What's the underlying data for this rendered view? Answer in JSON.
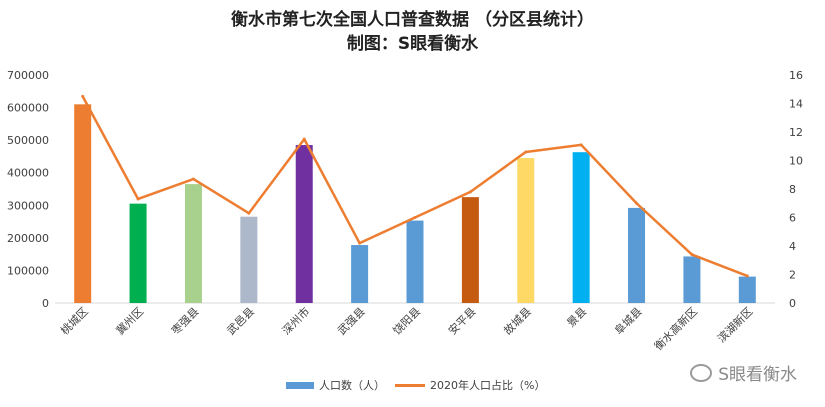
{
  "header": {
    "title": "衡水市第七次全国人口普查数据 （分区县统计）",
    "subtitle": "制图：S眼看衡水"
  },
  "watermark": "S眼看衡水",
  "chart_data": {
    "type": "bar",
    "categories": [
      "桃城区",
      "冀州区",
      "枣强县",
      "武邑县",
      "深州市",
      "武强县",
      "饶阳县",
      "安平县",
      "故城县",
      "景县",
      "阜城县",
      "衡水高新区",
      "滨湖新区"
    ],
    "y_ticks": [
      "0",
      "100000",
      "200000",
      "300000",
      "400000",
      "500000",
      "600000",
      "700000"
    ],
    "y2_ticks": [
      "0",
      "2",
      "4",
      "6",
      "8",
      "10",
      "12",
      "14",
      "16"
    ],
    "ylim": [
      0,
      700000
    ],
    "y2lim": [
      0,
      16
    ],
    "series": [
      {
        "name": "人口数（人）",
        "type": "bar",
        "values": [
          610000,
          305000,
          365000,
          265000,
          485000,
          178000,
          253000,
          325000,
          445000,
          463000,
          292000,
          143000,
          81000
        ],
        "colors": [
          "#ED7D31",
          "#00B050",
          "#A9D18E",
          "#ADB9CA",
          "#7030A0",
          "#5B9BD5",
          "#5B9BD5",
          "#C55A11",
          "#FFD966",
          "#00B0F0",
          "#5B9BD5",
          "#5B9BD5",
          "#5B9BD5"
        ]
      },
      {
        "name": "2020年人口占比（%）",
        "type": "line",
        "axis": "right",
        "values": [
          14.5,
          7.3,
          8.7,
          6.3,
          11.5,
          4.2,
          6.0,
          7.8,
          10.6,
          11.1,
          7.0,
          3.4,
          1.9
        ],
        "color": "#ED7D31"
      }
    ],
    "legend_position": "bottom"
  }
}
